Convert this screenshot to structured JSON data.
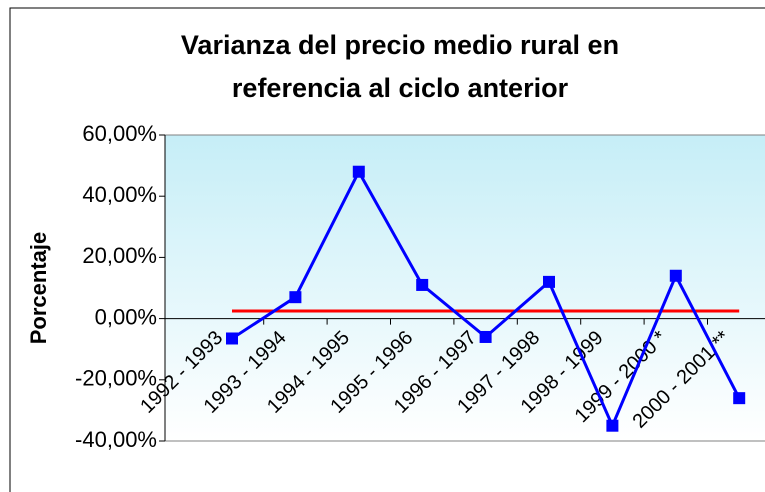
{
  "chart_data": {
    "type": "line",
    "title": [
      "Varianza del precio medio rural en",
      "referencia al ciclo anterior"
    ],
    "y_label": "Porcentaje",
    "categories": [
      "1992 - 1993",
      "1993 - 1994",
      "1994 - 1995",
      "1995 - 1996",
      "1996 - 1997",
      "1997 - 1998",
      "1998 - 1999",
      "1999 - 2000 *",
      "2000 - 2001 **"
    ],
    "series": [
      {
        "color": "#0000ff",
        "marker": "square",
        "values": [
          -6.5,
          7,
          48,
          11,
          -6,
          12,
          -35,
          14,
          -26
        ]
      },
      {
        "color": "#ff0000",
        "values": [
          2.5,
          2.5,
          2.5,
          2.5,
          2.5,
          2.5,
          2.5,
          2.5,
          2.5
        ]
      }
    ],
    "ylim": [
      -40,
      60
    ],
    "yticks": [
      {
        "value": -40,
        "label": "-40,00%"
      },
      {
        "value": -20,
        "label": "-20,00%"
      },
      {
        "value": 0,
        "label": "0,00%"
      },
      {
        "value": 20,
        "label": "20,00%"
      },
      {
        "value": 40,
        "label": "40,00%"
      },
      {
        "value": 60,
        "label": "60,00%"
      }
    ]
  }
}
